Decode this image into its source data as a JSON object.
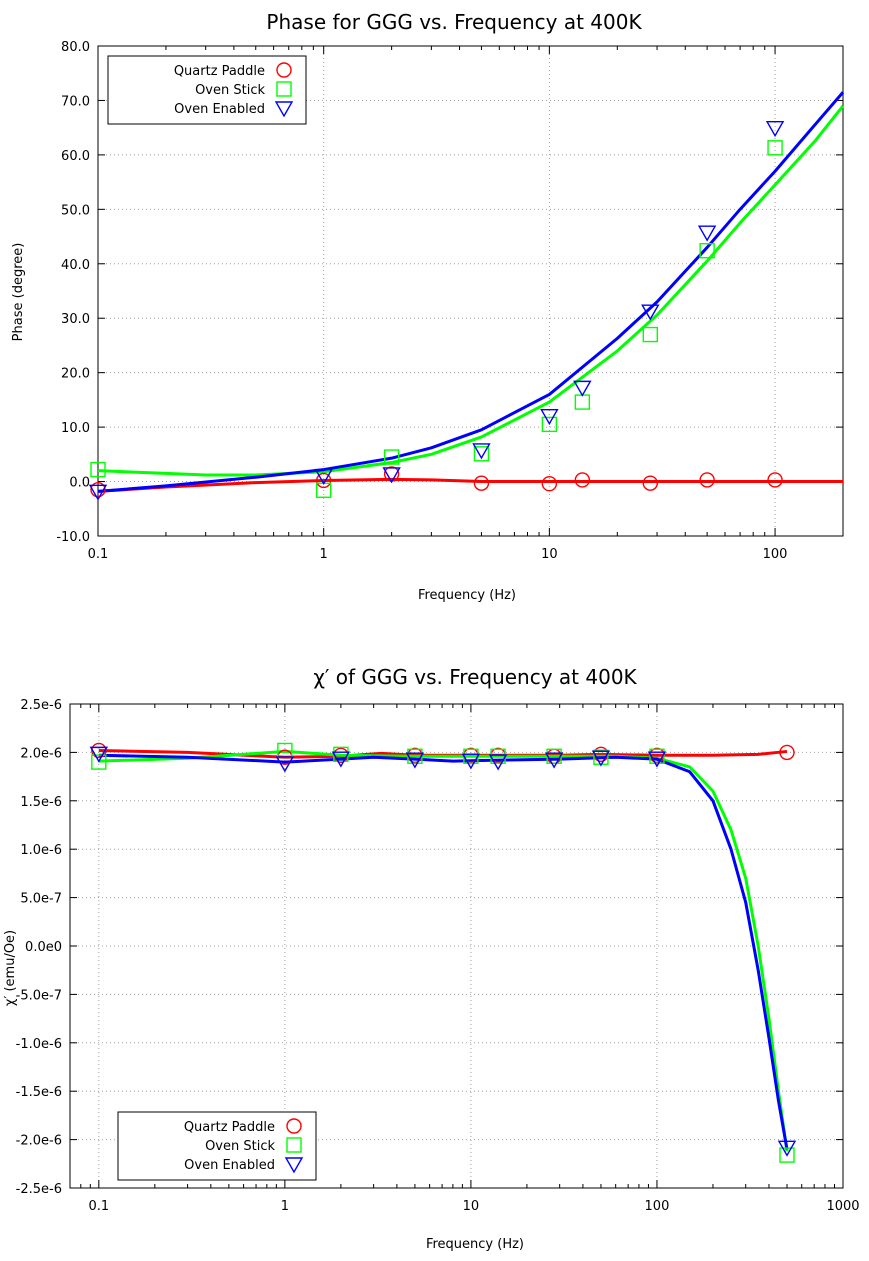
{
  "chart_data": [
    {
      "type": "scatter",
      "title": "Phase for GGG vs. Frequency at  400K",
      "xlabel": "Frequency (Hz)",
      "ylabel": "Phase (degree)",
      "xscale": "log",
      "xlim": [
        0.1,
        200
      ],
      "ylim": [
        -10,
        80
      ],
      "xticks": [
        "0.1",
        "1",
        "10",
        "100"
      ],
      "yticks": [
        "-10.0",
        "0.0",
        "10.0",
        "20.0",
        "30.0",
        "40.0",
        "50.0",
        "60.0",
        "70.0",
        "80.0"
      ],
      "grid": true,
      "legend": "top-left",
      "series": [
        {
          "name": "Quartz Paddle",
          "color": "#ff0000",
          "marker": "circle",
          "points": [
            [
              0.1,
              -1.5
            ],
            [
              1,
              0.2
            ],
            [
              2,
              1.4
            ],
            [
              5,
              -0.3
            ],
            [
              10,
              -0.4
            ],
            [
              14,
              0.3
            ],
            [
              28,
              -0.3
            ],
            [
              50,
              0.3
            ],
            [
              100,
              0.3
            ]
          ],
          "fit": [
            [
              0.1,
              -1.8
            ],
            [
              0.2,
              -1.0
            ],
            [
              0.5,
              -0.2
            ],
            [
              1,
              0.2
            ],
            [
              2,
              0.4
            ],
            [
              3,
              0.3
            ],
            [
              5,
              0.0
            ],
            [
              10,
              0.0
            ],
            [
              20,
              0.0
            ],
            [
              50,
              0.0
            ],
            [
              100,
              0.0
            ],
            [
              200,
              0.0
            ]
          ]
        },
        {
          "name": "Oven Stick",
          "color": "#00ff00",
          "marker": "square",
          "points": [
            [
              0.1,
              2.2
            ],
            [
              1,
              -1.6
            ],
            [
              2,
              4.5
            ],
            [
              5,
              5.1
            ],
            [
              10,
              10.5
            ],
            [
              14,
              14.6
            ],
            [
              28,
              27.0
            ],
            [
              50,
              42.4
            ],
            [
              100,
              61.3
            ]
          ],
          "fit": [
            [
              0.1,
              2.0
            ],
            [
              0.2,
              1.5
            ],
            [
              0.3,
              1.2
            ],
            [
              0.5,
              1.2
            ],
            [
              1,
              1.8
            ],
            [
              2,
              3.5
            ],
            [
              3,
              5.0
            ],
            [
              5,
              8.2
            ],
            [
              10,
              14.6
            ],
            [
              20,
              24.0
            ],
            [
              30,
              30.6
            ],
            [
              50,
              40.5
            ],
            [
              70,
              47.5
            ],
            [
              100,
              54.5
            ],
            [
              150,
              62.5
            ],
            [
              200,
              69.0
            ]
          ]
        },
        {
          "name": "Oven Enabled",
          "color": "#0000ff",
          "marker": "triangle-down",
          "points": [
            [
              0.1,
              -1.8
            ],
            [
              1,
              1.1
            ],
            [
              2,
              1.4
            ],
            [
              5,
              5.8
            ],
            [
              10,
              12.1
            ],
            [
              14,
              17.3
            ],
            [
              28,
              31.3
            ],
            [
              50,
              45.8
            ],
            [
              100,
              65.0
            ]
          ],
          "fit": [
            [
              0.1,
              -1.8
            ],
            [
              0.2,
              -0.8
            ],
            [
              0.5,
              0.8
            ],
            [
              1,
              2.2
            ],
            [
              2,
              4.3
            ],
            [
              3,
              6.2
            ],
            [
              5,
              9.5
            ],
            [
              10,
              16.0
            ],
            [
              20,
              26.3
            ],
            [
              30,
              33.0
            ],
            [
              50,
              43.0
            ],
            [
              70,
              50.0
            ],
            [
              100,
              57.0
            ],
            [
              150,
              65.5
            ],
            [
              200,
              71.5
            ]
          ]
        }
      ]
    },
    {
      "type": "scatter",
      "title": "χ′ of GGG vs. Frequency at  400K",
      "xlabel": "Frequency (Hz)",
      "ylabel": "χ′ (emu/Oe)",
      "xscale": "log",
      "xlim": [
        0.07,
        1000
      ],
      "ylim": [
        -2.5e-06,
        2.5e-06
      ],
      "xticks": [
        "0.1",
        "1",
        "10",
        "100",
        "1000"
      ],
      "yticks": [
        "-2.5e-6",
        "-2.0e-6",
        "-1.5e-6",
        "-1.0e-6",
        "-5.0e-7",
        "0.0e0",
        "5.0e-7",
        "1.0e-6",
        "1.5e-6",
        "2.0e-6",
        "2.5e-6"
      ],
      "grid": true,
      "legend": "bottom-left",
      "series": [
        {
          "name": "Quartz Paddle",
          "color": "#ff0000",
          "marker": "circle",
          "points": [
            [
              0.1,
              2.02e-06
            ],
            [
              1,
              1.95e-06
            ],
            [
              2,
              1.97e-06
            ],
            [
              5,
              1.97e-06
            ],
            [
              10,
              1.97e-06
            ],
            [
              14,
              1.97e-06
            ],
            [
              28,
              1.96e-06
            ],
            [
              50,
              1.98e-06
            ],
            [
              100,
              1.97e-06
            ],
            [
              500,
              2e-06
            ]
          ],
          "fit": [
            [
              0.1,
              2.02e-06
            ],
            [
              0.3,
              2e-06
            ],
            [
              1,
              1.95e-06
            ],
            [
              2,
              1.96e-06
            ],
            [
              3.3,
              1.99e-06
            ],
            [
              5,
              1.97e-06
            ],
            [
              10,
              1.97e-06
            ],
            [
              30,
              1.97e-06
            ],
            [
              50,
              1.98e-06
            ],
            [
              100,
              1.97e-06
            ],
            [
              200,
              1.97e-06
            ],
            [
              350,
              1.98e-06
            ],
            [
              500,
              2.01e-06
            ]
          ]
        },
        {
          "name": "Oven Stick",
          "color": "#00ff00",
          "marker": "square",
          "points": [
            [
              0.1,
              1.9e-06
            ],
            [
              1,
              2.02e-06
            ],
            [
              2,
              1.98e-06
            ],
            [
              5,
              1.96e-06
            ],
            [
              10,
              1.96e-06
            ],
            [
              14,
              1.96e-06
            ],
            [
              28,
              1.96e-06
            ],
            [
              50,
              1.95e-06
            ],
            [
              100,
              1.96e-06
            ],
            [
              500,
              -2.16e-06
            ]
          ],
          "fit": [
            [
              0.1,
              1.91e-06
            ],
            [
              0.3,
              1.94e-06
            ],
            [
              1,
              2.01e-06
            ],
            [
              2,
              1.97e-06
            ],
            [
              5,
              1.96e-06
            ],
            [
              10,
              1.96e-06
            ],
            [
              30,
              1.96e-06
            ],
            [
              60,
              1.96e-06
            ],
            [
              100,
              1.94e-06
            ],
            [
              150,
              1.85e-06
            ],
            [
              200,
              1.6e-06
            ],
            [
              250,
              1.2e-06
            ],
            [
              300,
              7e-07
            ],
            [
              350,
              0.0
            ],
            [
              400,
              -7.5e-07
            ],
            [
              450,
              -1.5e-06
            ],
            [
              500,
              -2.12e-06
            ]
          ]
        },
        {
          "name": "Oven Enabled",
          "color": "#0000ff",
          "marker": "triangle-down",
          "points": [
            [
              0.1,
              1.99e-06
            ],
            [
              1,
              1.89e-06
            ],
            [
              2,
              1.94e-06
            ],
            [
              5,
              1.93e-06
            ],
            [
              10,
              1.92e-06
            ],
            [
              14,
              1.91e-06
            ],
            [
              28,
              1.93e-06
            ],
            [
              50,
              1.95e-06
            ],
            [
              100,
              1.94e-06
            ],
            [
              500,
              -2.08e-06
            ]
          ],
          "fit": [
            [
              0.1,
              1.97e-06
            ],
            [
              0.3,
              1.95e-06
            ],
            [
              1,
              1.9e-06
            ],
            [
              2,
              1.93e-06
            ],
            [
              3,
              1.95e-06
            ],
            [
              5,
              1.93e-06
            ],
            [
              8,
              1.91e-06
            ],
            [
              14,
              1.92e-06
            ],
            [
              30,
              1.93e-06
            ],
            [
              60,
              1.95e-06
            ],
            [
              100,
              1.93e-06
            ],
            [
              150,
              1.8e-06
            ],
            [
              200,
              1.5e-06
            ],
            [
              250,
              1e-06
            ],
            [
              300,
              4.5e-07
            ],
            [
              350,
              -2.5e-07
            ],
            [
              400,
              -9.5e-07
            ],
            [
              450,
              -1.6e-06
            ],
            [
              500,
              -2.1e-06
            ]
          ]
        }
      ]
    }
  ]
}
